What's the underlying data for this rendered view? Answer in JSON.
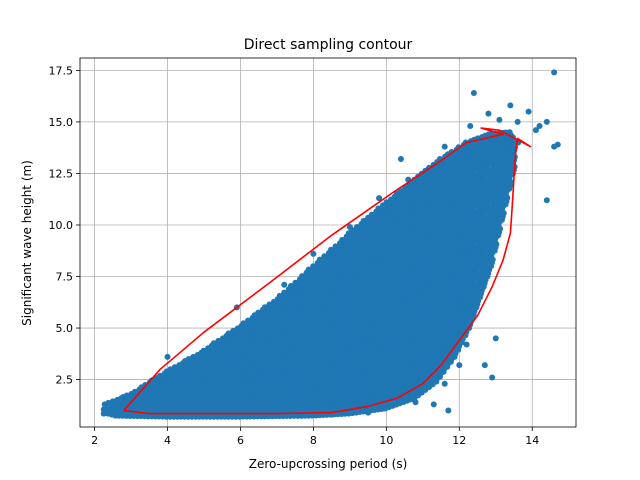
{
  "chart_data": {
    "type": "scatter",
    "title": "Direct sampling contour",
    "xlabel": "Zero-upcrossing period (s)",
    "ylabel": "Significant wave height (m)",
    "xlim": [
      1.6,
      15.2
    ],
    "ylim": [
      0.2,
      18.1
    ],
    "xticks": [
      2,
      4,
      6,
      8,
      10,
      12,
      14
    ],
    "yticks": [
      2.5,
      5.0,
      7.5,
      10.0,
      12.5,
      15.0,
      17.5
    ],
    "xtick_labels": [
      "2",
      "4",
      "6",
      "8",
      "10",
      "12",
      "14"
    ],
    "ytick_labels": [
      "2.5",
      "5.0",
      "7.5",
      "10.0",
      "12.5",
      "15.0",
      "17.5"
    ],
    "grid": true,
    "colors": {
      "scatter": "#1f77b4",
      "contour": "#ff0000",
      "grid": "#b0b0b0"
    },
    "scatter_region_lower": [
      [
        2.3,
        0.9
      ],
      [
        2.6,
        0.75
      ],
      [
        4,
        0.7
      ],
      [
        6,
        0.7
      ],
      [
        8,
        0.75
      ],
      [
        9,
        0.85
      ],
      [
        10,
        1.1
      ],
      [
        10.8,
        1.6
      ],
      [
        11.4,
        2.4
      ],
      [
        11.9,
        3.6
      ],
      [
        12.3,
        5
      ],
      [
        12.6,
        6.5
      ],
      [
        12.9,
        8
      ],
      [
        13.1,
        9.5
      ],
      [
        13.3,
        11
      ],
      [
        13.5,
        12.5
      ],
      [
        13.6,
        14
      ]
    ],
    "scatter_region_upper": [
      [
        2.3,
        1.3
      ],
      [
        3,
        1.8
      ],
      [
        4,
        2.9
      ],
      [
        5,
        3.9
      ],
      [
        6,
        5.1
      ],
      [
        7,
        6.4
      ],
      [
        8,
        8.0
      ],
      [
        9,
        9.6
      ],
      [
        10,
        11.1
      ],
      [
        10.8,
        12.2
      ],
      [
        11.5,
        13.2
      ],
      [
        12.2,
        14.0
      ],
      [
        12.8,
        14.4
      ],
      [
        13.4,
        14.5
      ],
      [
        13.6,
        14
      ]
    ],
    "outliers": [
      [
        2.25,
        1.05
      ],
      [
        2.25,
        0.85
      ],
      [
        2.5,
        1.35
      ],
      [
        2.6,
        1.1
      ],
      [
        3.3,
        1.4
      ],
      [
        4.0,
        3.6
      ],
      [
        4.2,
        3.1
      ],
      [
        5.5,
        4.2
      ],
      [
        5.9,
        6.0
      ],
      [
        6.2,
        4.8
      ],
      [
        7.2,
        7.1
      ],
      [
        8.0,
        8.6
      ],
      [
        9.0,
        9.9
      ],
      [
        9.8,
        11.3
      ],
      [
        10.6,
        12.2
      ],
      [
        10.4,
        13.2
      ],
      [
        11.6,
        13.8
      ],
      [
        12.3,
        14.8
      ],
      [
        12.4,
        16.4
      ],
      [
        12.8,
        15.4
      ],
      [
        13.1,
        15.1
      ],
      [
        13.4,
        15.8
      ],
      [
        13.6,
        15.0
      ],
      [
        13.9,
        15.5
      ],
      [
        14.1,
        14.6
      ],
      [
        14.2,
        14.8
      ],
      [
        14.4,
        15.0
      ],
      [
        14.6,
        17.4
      ],
      [
        14.7,
        13.9
      ],
      [
        14.6,
        13.8
      ],
      [
        14.4,
        11.2
      ],
      [
        13.2,
        12.7
      ],
      [
        13.0,
        11.2
      ],
      [
        12.8,
        9.0
      ],
      [
        12.6,
        7.0
      ],
      [
        12.3,
        5.2
      ],
      [
        12.2,
        4.2
      ],
      [
        12.0,
        3.2
      ],
      [
        11.7,
        1.0
      ],
      [
        11.6,
        2.3
      ],
      [
        10.8,
        1.4
      ],
      [
        10.5,
        1.5
      ],
      [
        9.5,
        0.9
      ],
      [
        8.5,
        0.8
      ],
      [
        12.7,
        3.2
      ],
      [
        13.0,
        4.5
      ],
      [
        12.9,
        2.6
      ],
      [
        11.3,
        1.3
      ]
    ],
    "contour": [
      [
        2.8,
        1.0
      ],
      [
        3.5,
        0.85
      ],
      [
        5.0,
        0.85
      ],
      [
        7.0,
        0.85
      ],
      [
        8.5,
        0.9
      ],
      [
        9.5,
        1.2
      ],
      [
        10.3,
        1.6
      ],
      [
        11.0,
        2.3
      ],
      [
        11.5,
        3.2
      ],
      [
        12.0,
        4.4
      ],
      [
        12.5,
        5.6
      ],
      [
        12.9,
        7.0
      ],
      [
        13.2,
        8.3
      ],
      [
        13.4,
        9.6
      ],
      [
        13.45,
        10.9
      ],
      [
        13.5,
        12.3
      ],
      [
        13.55,
        13.6
      ],
      [
        13.6,
        14.2
      ],
      [
        13.95,
        13.8
      ],
      [
        13.1,
        14.6
      ],
      [
        12.6,
        14.7
      ],
      [
        13.2,
        14.4
      ],
      [
        12.2,
        14.0
      ],
      [
        11.4,
        13.0
      ],
      [
        10.2,
        11.6
      ],
      [
        8.5,
        9.5
      ],
      [
        6.8,
        7.2
      ],
      [
        5.0,
        4.8
      ],
      [
        3.8,
        3.0
      ],
      [
        2.8,
        1.0
      ]
    ]
  }
}
